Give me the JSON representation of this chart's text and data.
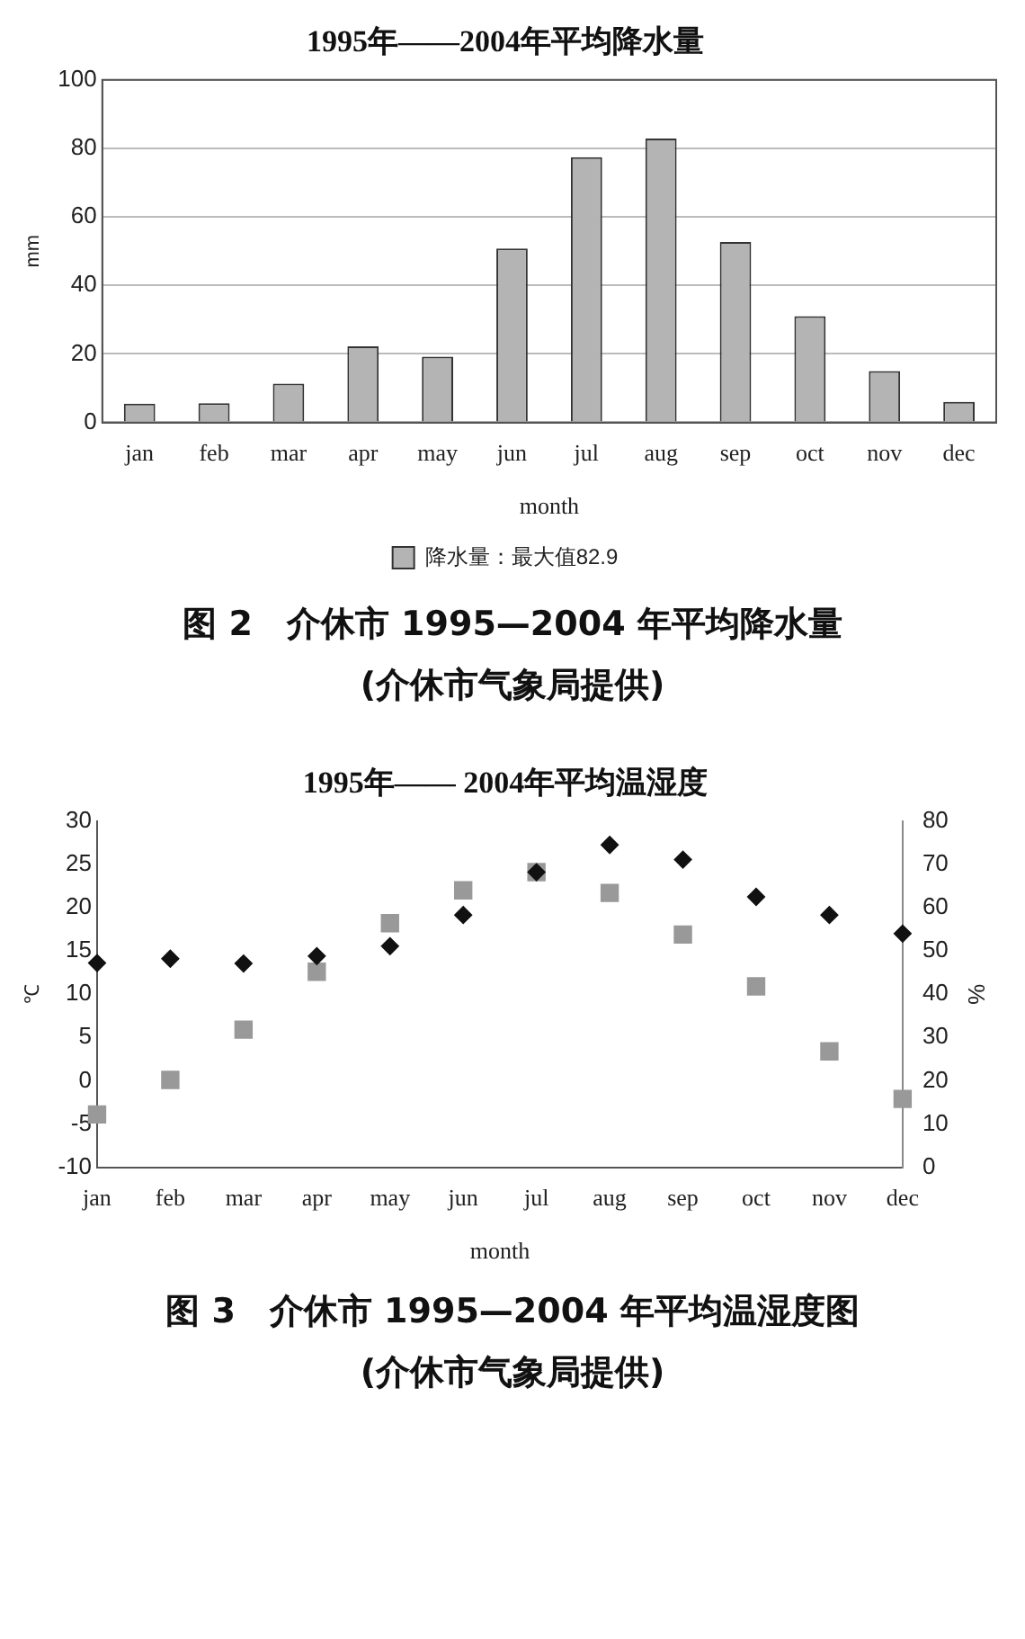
{
  "chart_data": [
    {
      "type": "bar",
      "title": "1995年——2004年平均降水量",
      "xlabel": "month",
      "ylabel": "mm",
      "categories": [
        "jan",
        "feb",
        "mar",
        "apr",
        "may",
        "jun",
        "jul",
        "aug",
        "sep",
        "oct",
        "nov",
        "dec"
      ],
      "series": [
        {
          "name": "降水量：最大值82.9",
          "color": "#b4b4b4",
          "values": [
            5.5,
            5.6,
            11.3,
            22.2,
            19.2,
            50.8,
            77.4,
            82.9,
            52.7,
            31,
            15,
            6
          ]
        }
      ],
      "ylim": [
        0,
        100
      ],
      "yticks": [
        0,
        20,
        40,
        60,
        80,
        100
      ],
      "grid": "y",
      "legend": "bottom",
      "annotations": [
        "图 2　介休市 1995—2004 年平均降水量",
        "(介休市气象局提供)"
      ]
    },
    {
      "type": "scatter",
      "title": "1995年—— 2004年平均温湿度",
      "xlabel": "month",
      "ylabel": "℃",
      "y2label": "%",
      "categories": [
        "jan",
        "feb",
        "mar",
        "apr",
        "may",
        "jun",
        "jul",
        "aug",
        "sep",
        "oct",
        "nov",
        "dec"
      ],
      "series": [
        {
          "color": "#999999",
          "marker": "square",
          "values": [
            -3.9,
            0.1,
            5.9,
            12.6,
            18.2,
            22.0,
            24.1,
            21.7,
            16.9,
            10.9,
            3.4,
            -2.1
          ]
        },
        {
          "color": "#111111",
          "marker": "diamond",
          "axis": "y2",
          "values": [
            47.2,
            48.2,
            47.1,
            48.8,
            51.1,
            58.3,
            68.2,
            74.5,
            71.1,
            62.5,
            58.3,
            54.0
          ]
        }
      ],
      "ylim": [
        -10,
        30
      ],
      "yticks": [
        -10,
        -5,
        0,
        5,
        10,
        15,
        20,
        25,
        30
      ],
      "y2lim": [
        0,
        80
      ],
      "y2ticks": [
        0,
        10,
        20,
        30,
        40,
        50,
        60,
        70,
        80
      ],
      "grid": false,
      "legend": false,
      "annotations": [
        "图 3　介休市 1995—2004 年平均温湿度图",
        "(介休市气象局提供)"
      ]
    }
  ]
}
